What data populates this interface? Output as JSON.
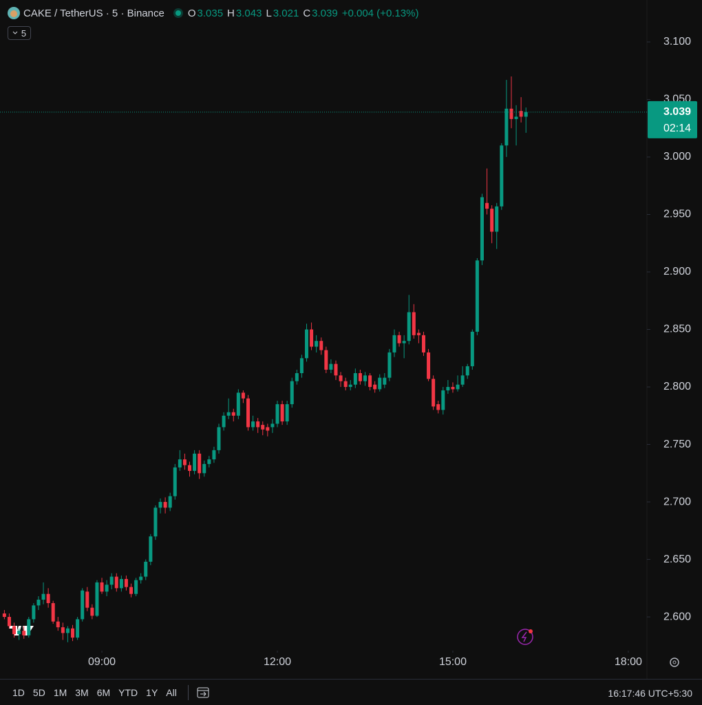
{
  "chart_data": {
    "type": "candlestick",
    "header": {
      "symbol": "CAKE / TetherUS · 5 · Binance",
      "o_label": "O",
      "o": "3.035",
      "h_label": "H",
      "h": "3.043",
      "l_label": "L",
      "l": "3.021",
      "c_label": "C",
      "c": "3.039",
      "change": "+0.004 (+0.13%)"
    },
    "interval": "5",
    "colors": {
      "up": "#089981",
      "down": "#f23645"
    },
    "xlim": [
      435.5,
      1099.1
    ],
    "xticks": [
      {
        "value": 540,
        "label": "09:00"
      },
      {
        "value": 720,
        "label": "12:00"
      },
      {
        "value": 900,
        "label": "15:00"
      },
      {
        "value": 1080,
        "label": "18:00"
      }
    ],
    "ylim": [
      2.5707,
      3.1365
    ],
    "yticks": [
      {
        "value": 2.6,
        "label": "2.600"
      },
      {
        "value": 2.65,
        "label": "2.650"
      },
      {
        "value": 2.7,
        "label": "2.700"
      },
      {
        "value": 2.75,
        "label": "2.750"
      },
      {
        "value": 2.8,
        "label": "2.800"
      },
      {
        "value": 2.85,
        "label": "2.850"
      },
      {
        "value": 2.9,
        "label": "2.900"
      },
      {
        "value": 2.95,
        "label": "2.950"
      },
      {
        "value": 3.0,
        "label": "3.000"
      },
      {
        "value": 3.05,
        "label": "3.050"
      },
      {
        "value": 3.1,
        "label": "3.100"
      }
    ],
    "countdown": "02:14",
    "x": [
      440,
      445,
      450,
      455,
      460,
      465,
      470,
      475,
      480,
      485,
      490,
      495,
      500,
      505,
      510,
      515,
      520,
      525,
      530,
      535,
      540,
      545,
      550,
      555,
      560,
      565,
      570,
      575,
      580,
      585,
      590,
      595,
      600,
      605,
      610,
      615,
      620,
      625,
      630,
      635,
      640,
      645,
      650,
      655,
      660,
      665,
      670,
      675,
      680,
      685,
      690,
      695,
      700,
      705,
      710,
      715,
      720,
      725,
      730,
      735,
      740,
      745,
      750,
      755,
      760,
      765,
      770,
      775,
      780,
      785,
      790,
      795,
      800,
      805,
      810,
      815,
      820,
      825,
      830,
      835,
      840,
      845,
      850,
      855,
      860,
      865,
      870,
      875,
      880,
      885,
      890,
      895,
      900,
      905,
      910,
      915,
      920,
      925,
      930,
      935,
      940,
      945,
      950,
      955,
      960,
      965,
      970,
      975
    ],
    "candles": [
      [
        2.603,
        2.606,
        2.598,
        2.6
      ],
      [
        2.6,
        2.603,
        2.59,
        2.592
      ],
      [
        2.592,
        2.595,
        2.582,
        2.585
      ],
      [
        2.585,
        2.59,
        2.58,
        2.588
      ],
      [
        2.588,
        2.592,
        2.581,
        2.584
      ],
      [
        2.584,
        2.6,
        2.582,
        2.598
      ],
      [
        2.598,
        2.612,
        2.595,
        2.61
      ],
      [
        2.61,
        2.618,
        2.606,
        2.615
      ],
      [
        2.615,
        2.63,
        2.611,
        2.62
      ],
      [
        2.62,
        2.625,
        2.608,
        2.612
      ],
      [
        2.612,
        2.614,
        2.594,
        2.596
      ],
      [
        2.596,
        2.6,
        2.588,
        2.591
      ],
      [
        2.591,
        2.595,
        2.58,
        2.586
      ],
      [
        2.586,
        2.592,
        2.578,
        2.59
      ],
      [
        2.59,
        2.593,
        2.579,
        2.582
      ],
      [
        2.582,
        2.6,
        2.58,
        2.598
      ],
      [
        2.598,
        2.625,
        2.596,
        2.623
      ],
      [
        2.622,
        2.626,
        2.605,
        2.608
      ],
      [
        2.608,
        2.611,
        2.598,
        2.601
      ],
      [
        2.601,
        2.632,
        2.6,
        2.63
      ],
      [
        2.63,
        2.634,
        2.62,
        2.622
      ],
      [
        2.622,
        2.632,
        2.618,
        2.628
      ],
      [
        2.628,
        2.638,
        2.624,
        2.635
      ],
      [
        2.635,
        2.638,
        2.622,
        2.625
      ],
      [
        2.625,
        2.636,
        2.622,
        2.633
      ],
      [
        2.633,
        2.636,
        2.623,
        2.626
      ],
      [
        2.626,
        2.629,
        2.617,
        2.62
      ],
      [
        2.62,
        2.634,
        2.618,
        2.632
      ],
      [
        2.632,
        2.638,
        2.629,
        2.635
      ],
      [
        2.635,
        2.65,
        2.632,
        2.648
      ],
      [
        2.648,
        2.672,
        2.645,
        2.67
      ],
      [
        2.67,
        2.697,
        2.667,
        2.695
      ],
      [
        2.695,
        2.703,
        2.69,
        2.7
      ],
      [
        2.7,
        2.704,
        2.69,
        2.695
      ],
      [
        2.695,
        2.708,
        2.692,
        2.705
      ],
      [
        2.705,
        2.733,
        2.702,
        2.73
      ],
      [
        2.73,
        2.745,
        2.727,
        2.737
      ],
      [
        2.737,
        2.742,
        2.728,
        2.732
      ],
      [
        2.732,
        2.735,
        2.722,
        2.727
      ],
      [
        2.727,
        2.745,
        2.724,
        2.742
      ],
      [
        2.742,
        2.745,
        2.72,
        2.725
      ],
      [
        2.725,
        2.736,
        2.722,
        2.733
      ],
      [
        2.733,
        2.74,
        2.73,
        2.737
      ],
      [
        2.737,
        2.748,
        2.734,
        2.745
      ],
      [
        2.745,
        2.768,
        2.742,
        2.765
      ],
      [
        2.765,
        2.778,
        2.762,
        2.775
      ],
      [
        2.775,
        2.79,
        2.772,
        2.778
      ],
      [
        2.778,
        2.781,
        2.77,
        2.775
      ],
      [
        2.775,
        2.798,
        2.772,
        2.795
      ],
      [
        2.795,
        2.797,
        2.786,
        2.79
      ],
      [
        2.79,
        2.793,
        2.762,
        2.765
      ],
      [
        2.765,
        2.775,
        2.762,
        2.77
      ],
      [
        2.77,
        2.773,
        2.76,
        2.765
      ],
      [
        2.767,
        2.77,
        2.758,
        2.763
      ],
      [
        2.765,
        2.768,
        2.757,
        2.762
      ],
      [
        2.765,
        2.772,
        2.76,
        2.768
      ],
      [
        2.768,
        2.788,
        2.765,
        2.785
      ],
      [
        2.785,
        2.788,
        2.767,
        2.77
      ],
      [
        2.77,
        2.788,
        2.767,
        2.785
      ],
      [
        2.785,
        2.808,
        2.782,
        2.805
      ],
      [
        2.805,
        2.815,
        2.802,
        2.812
      ],
      [
        2.812,
        2.828,
        2.808,
        2.825
      ],
      [
        2.825,
        2.855,
        2.822,
        2.85
      ],
      [
        2.85,
        2.856,
        2.832,
        2.835
      ],
      [
        2.835,
        2.845,
        2.83,
        2.84
      ],
      [
        2.84,
        2.843,
        2.828,
        2.832
      ],
      [
        2.832,
        2.835,
        2.812,
        2.815
      ],
      [
        2.815,
        2.824,
        2.812,
        2.82
      ],
      [
        2.82,
        2.823,
        2.806,
        2.81
      ],
      [
        2.81,
        2.813,
        2.8,
        2.805
      ],
      [
        2.805,
        2.808,
        2.797,
        2.8
      ],
      [
        2.8,
        2.806,
        2.797,
        2.802
      ],
      [
        2.802,
        2.816,
        2.799,
        2.812
      ],
      [
        2.812,
        2.815,
        2.802,
        2.805
      ],
      [
        2.805,
        2.813,
        2.801,
        2.81
      ],
      [
        2.81,
        2.812,
        2.797,
        2.8
      ],
      [
        2.802,
        2.805,
        2.795,
        2.798
      ],
      [
        2.798,
        2.811,
        2.796,
        2.808
      ],
      [
        2.802,
        2.812,
        2.799,
        2.808
      ],
      [
        2.808,
        2.833,
        2.805,
        2.83
      ],
      [
        2.83,
        2.85,
        2.826,
        2.845
      ],
      [
        2.845,
        2.848,
        2.835,
        2.838
      ],
      [
        2.838,
        2.845,
        2.825,
        2.84
      ],
      [
        2.84,
        2.88,
        2.837,
        2.865
      ],
      [
        2.865,
        2.872,
        2.842,
        2.845
      ],
      [
        2.847,
        2.85,
        2.838,
        2.845
      ],
      [
        2.845,
        2.848,
        2.827,
        2.83
      ],
      [
        2.83,
        2.833,
        2.805,
        2.807
      ],
      [
        2.807,
        2.81,
        2.78,
        2.783
      ],
      [
        2.785,
        2.788,
        2.777,
        2.78
      ],
      [
        2.78,
        2.8,
        2.776,
        2.797
      ],
      [
        2.797,
        2.806,
        2.794,
        2.8
      ],
      [
        2.8,
        2.804,
        2.795,
        2.798
      ],
      [
        2.798,
        2.81,
        2.796,
        2.802
      ],
      [
        2.802,
        2.818,
        2.8,
        2.81
      ],
      [
        2.81,
        2.82,
        2.807,
        2.818
      ],
      [
        2.818,
        2.85,
        2.815,
        2.848
      ],
      [
        2.848,
        2.912,
        2.845,
        2.91
      ],
      [
        2.91,
        2.968,
        2.906,
        2.965
      ],
      [
        2.96,
        2.99,
        2.95,
        2.955
      ],
      [
        2.955,
        2.958,
        2.925,
        2.935
      ],
      [
        2.935,
        2.96,
        2.92,
        2.957
      ],
      [
        2.957,
        3.012,
        2.954,
        3.01
      ],
      [
        3.01,
        3.067,
        3.0,
        3.042
      ],
      [
        3.042,
        3.07,
        3.025,
        3.033
      ],
      [
        3.033,
        3.045,
        3.01,
        3.035
      ],
      [
        3.04,
        3.052,
        3.03,
        3.035
      ],
      [
        3.035,
        3.043,
        3.021,
        3.039
      ]
    ],
    "ranges": [
      "1D",
      "5D",
      "1M",
      "3M",
      "6M",
      "YTD",
      "1Y",
      "All"
    ],
    "clock": "16:17:46 UTC+5:30"
  }
}
